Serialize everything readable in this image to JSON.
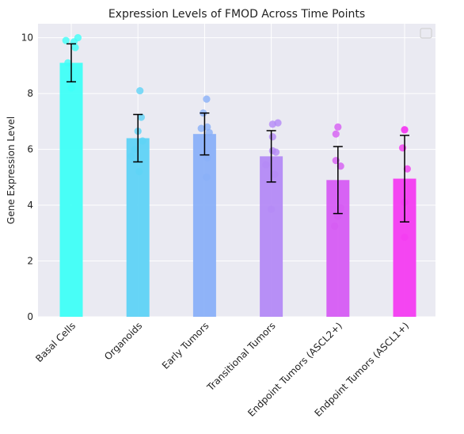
{
  "chart_data": {
    "type": "bar",
    "title": "Expression Levels of FMOD Across Time Points",
    "xlabel": "",
    "ylabel": "Gene Expression Level",
    "ylim": [
      0,
      10.5
    ],
    "yticks": [
      0,
      2,
      4,
      6,
      8,
      10
    ],
    "grid": true,
    "legend": "top-right (empty)",
    "categories": [
      "Basal Cells",
      "Organoids",
      "Early Tumors",
      "Transitional Tumors",
      "Endpoint Tumors (ASCL2+)",
      "Endpoint Tumors (ASCL1+)"
    ],
    "values": [
      9.1,
      6.4,
      6.55,
      5.75,
      4.9,
      4.95
    ],
    "errors": [
      0.68,
      0.85,
      0.75,
      0.92,
      1.2,
      1.55
    ],
    "colors": [
      "#3ffff7",
      "#5fd3f6",
      "#8ab0f8",
      "#b48af6",
      "#d65cf3",
      "#f43cf1"
    ],
    "points": [
      [
        8.2,
        9.1,
        9.65,
        9.9,
        10.0,
        9.85
      ],
      [
        5.2,
        5.75,
        6.0,
        6.3,
        6.65,
        7.15,
        8.1
      ],
      [
        5.0,
        5.7,
        6.6,
        6.75,
        6.8,
        7.3,
        7.8
      ],
      [
        3.85,
        5.1,
        5.45,
        5.9,
        5.95,
        6.45,
        6.9,
        6.95
      ],
      [
        3.25,
        3.6,
        3.9,
        5.4,
        5.6,
        6.55,
        6.8
      ],
      [
        2.85,
        4.1,
        5.3,
        6.05,
        6.7,
        6.7
      ]
    ],
    "point_offsets": [
      [
        0,
        -0.05,
        0.06,
        -0.08,
        0.1,
        0.04
      ],
      [
        0.02,
        -0.1,
        -0.05,
        0.07,
        0.0,
        0.05,
        0.03
      ],
      [
        0.03,
        0.04,
        0.07,
        -0.05,
        0.04,
        -0.02,
        0.03
      ],
      [
        0.0,
        0.05,
        -0.08,
        0.07,
        0.02,
        0.02,
        0.02,
        0.1
      ],
      [
        -0.05,
        0.0,
        0.04,
        0.04,
        -0.03,
        -0.03,
        0.0
      ],
      [
        0.0,
        0.0,
        0.04,
        -0.03,
        0.0,
        0.0
      ]
    ]
  }
}
